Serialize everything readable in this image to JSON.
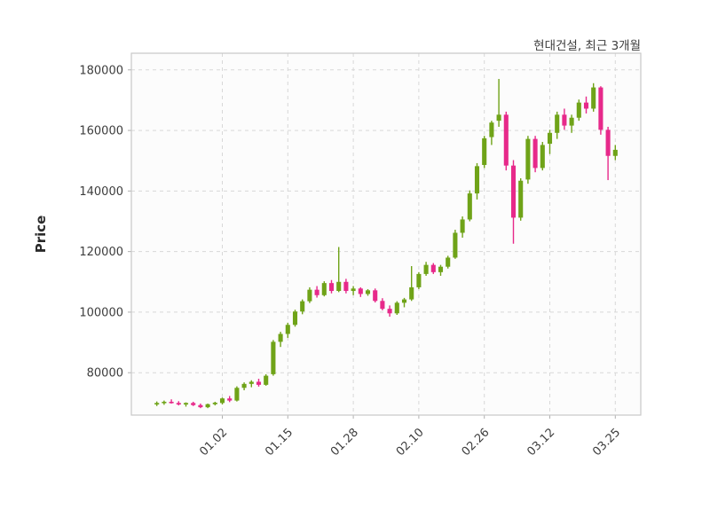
{
  "title": "현대건설, 최근 3개월",
  "ylabel": "Price",
  "chart_data": {
    "type": "candlestick",
    "title": "현대건설, 최근 3개월",
    "ylabel": "Price",
    "xlabel": "",
    "legend": null,
    "grid": true,
    "grid_style": "dashed",
    "up_color": "#6fa318",
    "down_color": "#e7298a",
    "grid_color": "#d8d8d8",
    "spine_color": "#c8c8c8",
    "tick_text_color": "#3d3d3d",
    "plot_bg_color": "#fcfcfc",
    "ylim": [
      66000,
      185500
    ],
    "yticks": [
      80000,
      100000,
      120000,
      140000,
      160000,
      180000
    ],
    "x_ticks": [
      {
        "index": 9,
        "label": "01.02"
      },
      {
        "index": 18,
        "label": "01.15"
      },
      {
        "index": 27,
        "label": "01.28"
      },
      {
        "index": 36,
        "label": "02.10"
      },
      {
        "index": 45,
        "label": "02.26"
      },
      {
        "index": 54,
        "label": "03.12"
      },
      {
        "index": 63,
        "label": "03.25"
      }
    ],
    "ohlc_columns": [
      "open",
      "high",
      "low",
      "close"
    ],
    "ohlc": [
      [
        69500,
        70500,
        69000,
        70000
      ],
      [
        70000,
        70800,
        69400,
        70400
      ],
      [
        70400,
        71200,
        69800,
        70000
      ],
      [
        70000,
        70600,
        69200,
        69500
      ],
      [
        69500,
        70200,
        68800,
        70000
      ],
      [
        70000,
        70400,
        69000,
        69300
      ],
      [
        69300,
        69800,
        68300,
        68600
      ],
      [
        68600,
        69800,
        68300,
        69600
      ],
      [
        69600,
        70400,
        69200,
        70100
      ],
      [
        70000,
        71800,
        69500,
        71500
      ],
      [
        71500,
        72300,
        70300,
        70800
      ],
      [
        70800,
        75500,
        70500,
        75000
      ],
      [
        75000,
        76800,
        74200,
        76300
      ],
      [
        76300,
        77500,
        75200,
        77000
      ],
      [
        77000,
        78000,
        75400,
        76000
      ],
      [
        76000,
        79500,
        75700,
        79000
      ],
      [
        79500,
        90800,
        79000,
        90200
      ],
      [
        90200,
        93500,
        88500,
        92800
      ],
      [
        92800,
        96500,
        91500,
        95800
      ],
      [
        95800,
        100800,
        95200,
        100200
      ],
      [
        100200,
        104200,
        99300,
        103600
      ],
      [
        103600,
        108200,
        103000,
        107400
      ],
      [
        107400,
        108600,
        104800,
        105600
      ],
      [
        105600,
        110200,
        105200,
        109600
      ],
      [
        109600,
        110600,
        106200,
        107000
      ],
      [
        107000,
        121500,
        106600,
        110000
      ],
      [
        110000,
        111000,
        106200,
        107000
      ],
      [
        107000,
        108600,
        105600,
        107800
      ],
      [
        107800,
        108200,
        105000,
        106000
      ],
      [
        106000,
        107600,
        105400,
        107200
      ],
      [
        107200,
        107800,
        103200,
        103700
      ],
      [
        103700,
        104600,
        100600,
        101100
      ],
      [
        101100,
        102200,
        98500,
        99600
      ],
      [
        99600,
        103600,
        99100,
        103100
      ],
      [
        103100,
        104700,
        101600,
        104200
      ],
      [
        104200,
        115200,
        103700,
        108200
      ],
      [
        108200,
        113200,
        107600,
        112600
      ],
      [
        112600,
        116600,
        112000,
        115600
      ],
      [
        115600,
        116200,
        112600,
        113200
      ],
      [
        113200,
        115600,
        112000,
        115000
      ],
      [
        115000,
        118600,
        114400,
        118000
      ],
      [
        118000,
        127200,
        117600,
        126200
      ],
      [
        126200,
        131600,
        124600,
        130600
      ],
      [
        130600,
        140200,
        130000,
        139200
      ],
      [
        139200,
        149200,
        137200,
        148200
      ],
      [
        148600,
        158200,
        147600,
        157400
      ],
      [
        157800,
        163200,
        155200,
        162600
      ],
      [
        163200,
        177000,
        161200,
        165200
      ],
      [
        165200,
        166200,
        146800,
        148400
      ],
      [
        148400,
        150200,
        122600,
        131200
      ],
      [
        131200,
        144200,
        130200,
        143400
      ],
      [
        143800,
        158200,
        142400,
        157200
      ],
      [
        157200,
        158200,
        146200,
        147600
      ],
      [
        147600,
        156200,
        146800,
        155200
      ],
      [
        155600,
        160200,
        152200,
        159200
      ],
      [
        159200,
        166200,
        157200,
        165200
      ],
      [
        165200,
        167200,
        160200,
        161600
      ],
      [
        161600,
        165200,
        159200,
        164200
      ],
      [
        164200,
        170200,
        163200,
        169200
      ],
      [
        169200,
        171200,
        165600,
        167200
      ],
      [
        167200,
        175600,
        166200,
        174200
      ],
      [
        174200,
        174600,
        158600,
        160200
      ],
      [
        160200,
        161200,
        143600,
        151600
      ],
      [
        151600,
        155200,
        150200,
        153600
      ]
    ]
  }
}
